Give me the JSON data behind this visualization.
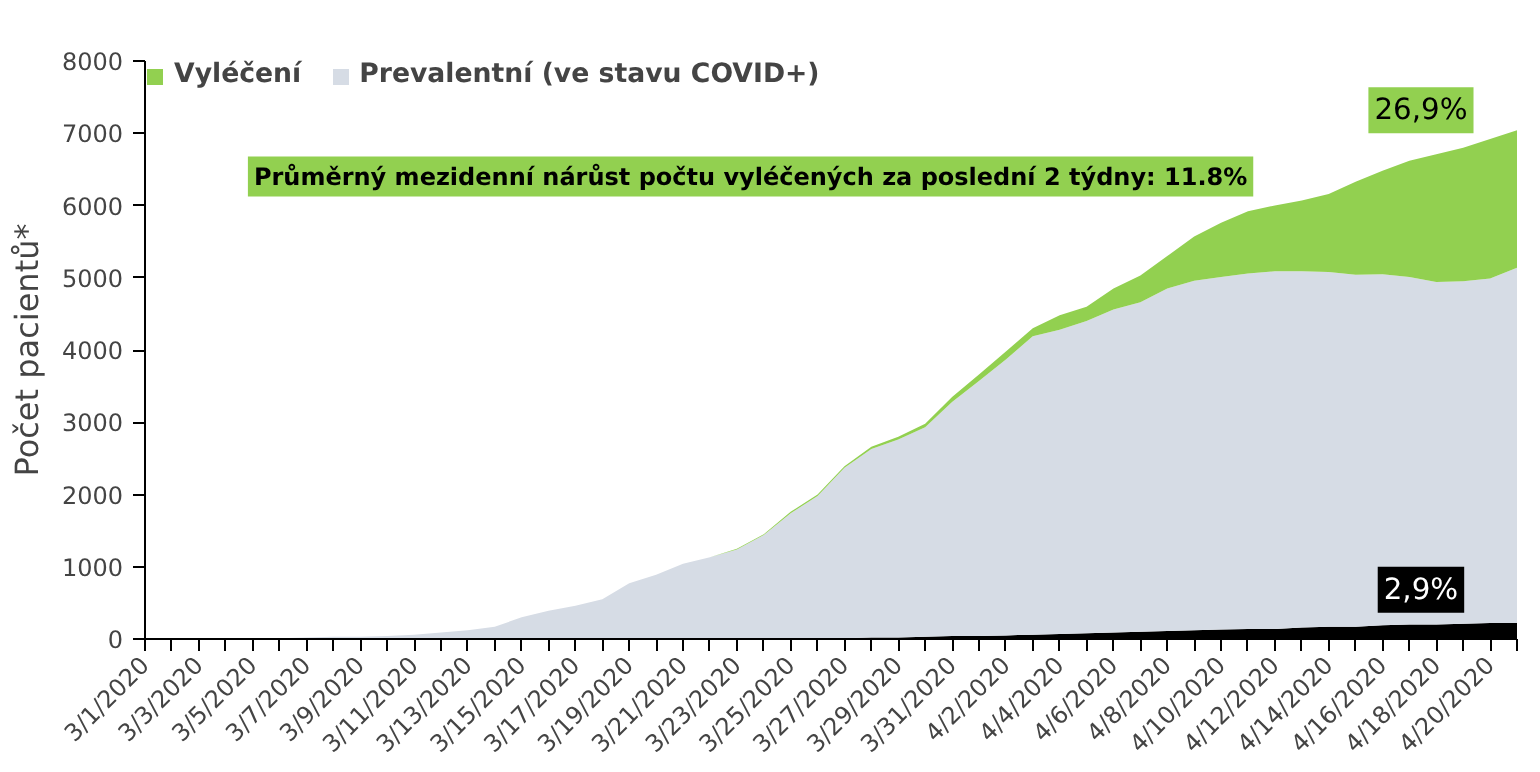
{
  "chart_data": {
    "type": "area",
    "stacked": true,
    "ylabel": "Počet pacientů*",
    "categories": [
      "3/1/2020",
      null,
      "3/3/2020",
      null,
      "3/5/2020",
      null,
      "3/7/2020",
      null,
      "3/9/2020",
      null,
      "3/11/2020",
      null,
      "3/13/2020",
      null,
      "3/15/2020",
      null,
      "3/17/2020",
      null,
      "3/19/2020",
      null,
      "3/21/2020",
      null,
      "3/23/2020",
      null,
      "3/25/2020",
      null,
      "3/27/2020",
      null,
      "3/29/2020",
      null,
      "3/31/2020",
      null,
      "4/2/2020",
      null,
      "4/4/2020",
      null,
      "4/6/2020",
      null,
      "4/8/2020",
      null,
      "4/10/2020",
      null,
      "4/12/2020",
      null,
      "4/14/2020",
      null,
      "4/16/2020",
      null,
      "4/18/2020",
      null,
      "4/20/2020",
      null
    ],
    "series": [
      {
        "color": "#000000",
        "values": [
          0,
          0,
          0,
          0,
          0,
          0,
          0,
          0,
          0,
          0,
          0,
          0,
          0,
          0,
          0,
          0,
          0,
          0,
          0,
          0,
          0,
          0,
          0,
          0,
          10,
          10,
          10,
          20,
          20,
          30,
          40,
          40,
          50,
          60,
          70,
          80,
          90,
          100,
          110,
          120,
          130,
          140,
          140,
          160,
          170,
          170,
          190,
          200,
          200,
          210,
          220,
          220
        ]
      },
      {
        "name": "Prevalentní (ve stavu COVID+)",
        "color": "#d6dce5",
        "values": [
          0,
          0,
          10,
          10,
          10,
          10,
          20,
          30,
          30,
          40,
          60,
          90,
          120,
          170,
          300,
          390,
          460,
          550,
          770,
          890,
          1040,
          1130,
          1240,
          1440,
          1730,
          1970,
          2360,
          2610,
          2740,
          2900,
          3240,
          3530,
          3820,
          4130,
          4210,
          4320,
          4470,
          4560,
          4740,
          4840,
          4880,
          4920,
          4950,
          4930,
          4910,
          4870,
          4860,
          4810,
          4740,
          4740,
          4770,
          4920
        ]
      },
      {
        "name": "Vyléčení",
        "color": "#92d050",
        "values": [
          0,
          0,
          0,
          0,
          0,
          0,
          0,
          0,
          0,
          0,
          0,
          0,
          0,
          0,
          0,
          0,
          0,
          0,
          0,
          0,
          0,
          0,
          10,
          10,
          20,
          20,
          20,
          30,
          40,
          50,
          70,
          90,
          110,
          110,
          200,
          200,
          290,
          370,
          450,
          610,
          750,
          860,
          910,
          980,
          1080,
          1290,
          1430,
          1610,
          1770,
          1850,
          1930,
          1900
        ]
      }
    ],
    "ylim": [
      0,
      8000
    ],
    "yticks": [
      0,
      1000,
      2000,
      3000,
      4000,
      5000,
      6000,
      7000,
      8000
    ],
    "grid": false,
    "legend": "top left",
    "annotations": [
      "Průměrný mezidenní nárůst počtu vyléčených za poslední 2 týdny: 11.8%",
      "26,9%",
      "2,9%"
    ]
  }
}
